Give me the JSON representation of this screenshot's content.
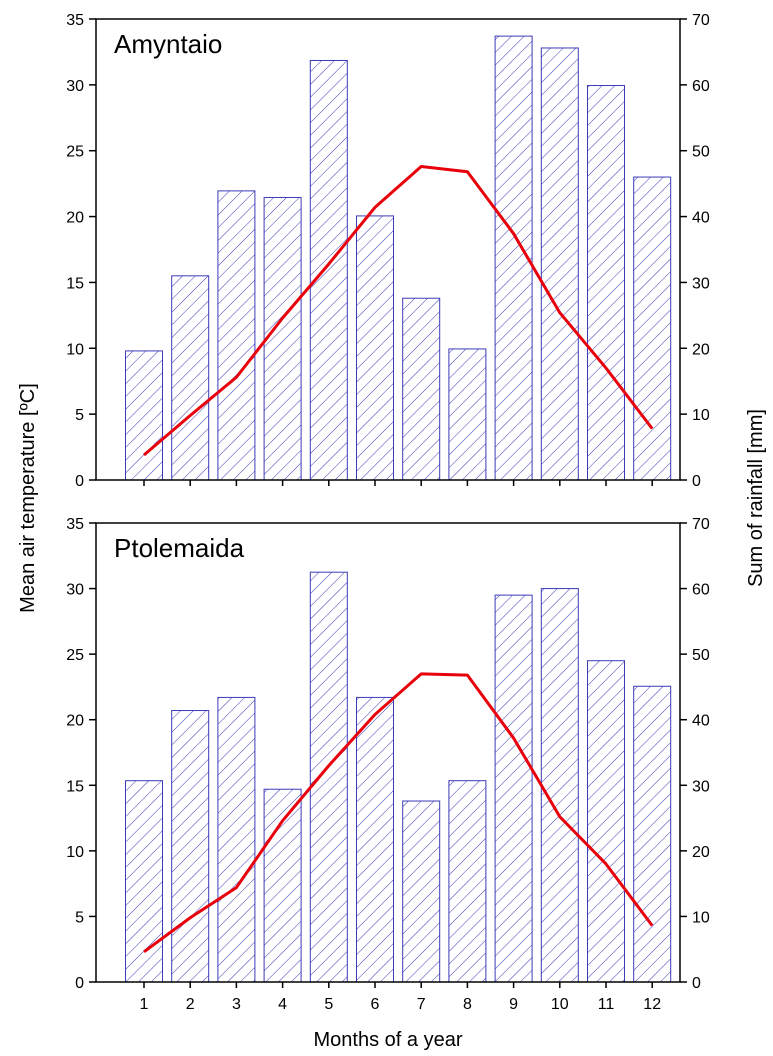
{
  "chart_data": [
    {
      "type": "bar+line",
      "title": "Amyntaio",
      "categories": [
        "1",
        "2",
        "3",
        "4",
        "5",
        "6",
        "7",
        "8",
        "9",
        "10",
        "11",
        "12"
      ],
      "ylabel_left": "Mean air temperature [ºC]",
      "ylabel_right": "Sum of rainfall [mm]",
      "ylim_left": [
        0,
        35
      ],
      "ylim_right": [
        0,
        70
      ],
      "yticks_left": [
        "0",
        "5",
        "10",
        "15",
        "20",
        "25",
        "30",
        "35"
      ],
      "yticks_right": [
        "0",
        "10",
        "20",
        "30",
        "40",
        "50",
        "60",
        "70"
      ],
      "series": [
        {
          "type": "bar",
          "axis": "right",
          "color": "#3b3bb8",
          "values": [
            19.6,
            31.0,
            43.9,
            42.9,
            63.7,
            40.1,
            27.6,
            19.9,
            67.4,
            65.6,
            59.9,
            46.0
          ]
        },
        {
          "type": "line",
          "axis": "left",
          "color": "#e8000b",
          "values": [
            1.9,
            4.9,
            7.8,
            12.3,
            16.4,
            20.7,
            23.8,
            23.4,
            18.7,
            12.7,
            8.5,
            3.9
          ]
        }
      ]
    },
    {
      "type": "bar+line",
      "title": "Ptolemaida",
      "categories": [
        "1",
        "2",
        "3",
        "4",
        "5",
        "6",
        "7",
        "8",
        "9",
        "10",
        "11",
        "12"
      ],
      "xlabel": "Months of a year",
      "ylim_left": [
        0,
        35
      ],
      "ylim_right": [
        0,
        70
      ],
      "yticks_left": [
        "0",
        "5",
        "10",
        "15",
        "20",
        "25",
        "30",
        "35"
      ],
      "yticks_right": [
        "0",
        "10",
        "20",
        "30",
        "40",
        "50",
        "60",
        "70"
      ],
      "series": [
        {
          "type": "bar",
          "axis": "right",
          "color": "#3b3bb8",
          "values": [
            30.7,
            41.4,
            43.4,
            29.4,
            62.5,
            43.4,
            27.6,
            30.7,
            59.0,
            60.0,
            49.0,
            45.1
          ]
        },
        {
          "type": "line",
          "axis": "left",
          "color": "#e8000b",
          "values": [
            2.3,
            4.9,
            7.2,
            12.3,
            16.5,
            20.4,
            23.5,
            23.4,
            18.6,
            12.6,
            9.0,
            4.3
          ]
        }
      ]
    }
  ]
}
